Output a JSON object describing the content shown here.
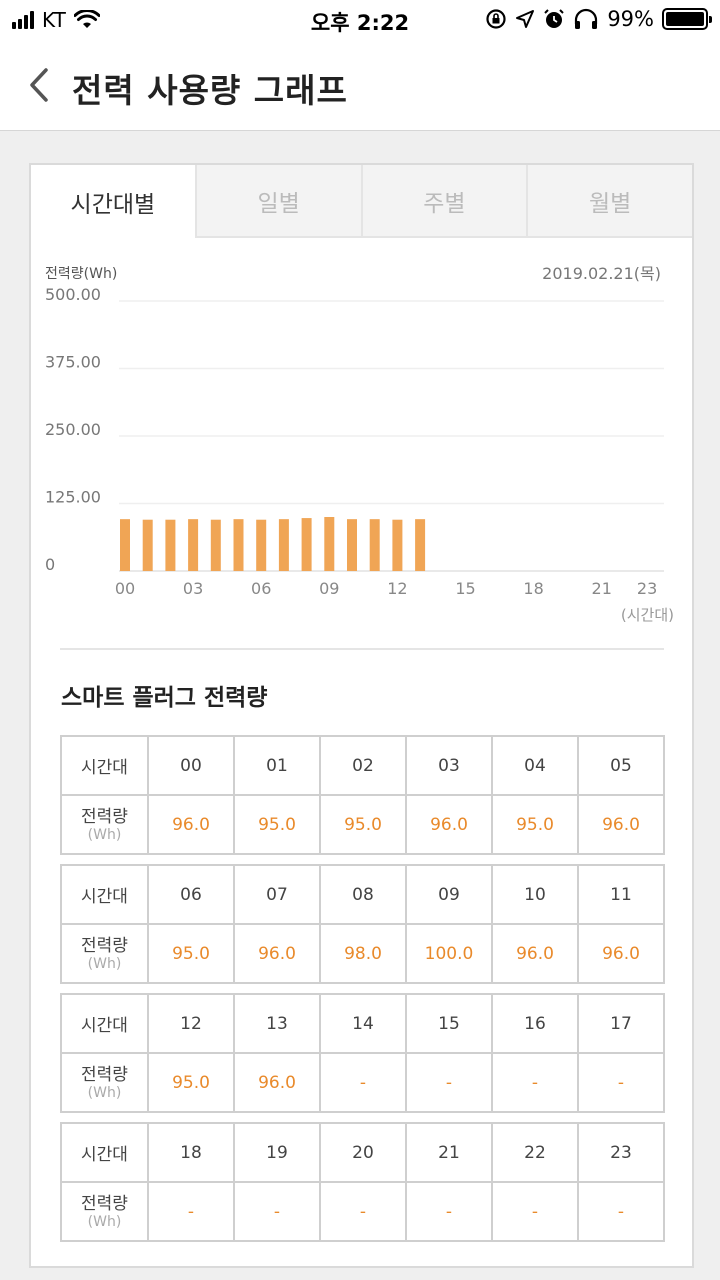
{
  "status": {
    "carrier": "KT",
    "time": "오후 2:22",
    "battery": "99%",
    "battery_level": 0.99
  },
  "header": {
    "title": "전력 사용량 그래프",
    "back_icon": "chevron-left-icon"
  },
  "tabs": [
    {
      "label": "시간대별",
      "active": true
    },
    {
      "label": "일별",
      "active": false
    },
    {
      "label": "주별",
      "active": false
    },
    {
      "label": "월별",
      "active": false
    }
  ],
  "chart_data": {
    "type": "bar",
    "ylabel": "전력량(Wh)",
    "xlabel": "(시간대)",
    "date": "2019.02.21(목)",
    "ylim": [
      0,
      500
    ],
    "yticks": [
      "500.00",
      "375.00",
      "250.00",
      "125.00",
      "0"
    ],
    "ytick_values": [
      500,
      375,
      250,
      125,
      0
    ],
    "xticks": [
      "00",
      "03",
      "06",
      "09",
      "12",
      "15",
      "18",
      "21",
      "23"
    ],
    "xtick_hours": [
      0,
      3,
      6,
      9,
      12,
      15,
      18,
      21,
      23
    ],
    "categories": [
      "00",
      "01",
      "02",
      "03",
      "04",
      "05",
      "06",
      "07",
      "08",
      "09",
      "10",
      "11",
      "12",
      "13",
      "14",
      "15",
      "16",
      "17",
      "18",
      "19",
      "20",
      "21",
      "22",
      "23"
    ],
    "values": [
      96.0,
      95.0,
      95.0,
      96.0,
      95.0,
      96.0,
      95.0,
      96.0,
      98.0,
      100.0,
      96.0,
      96.0,
      95.0,
      96.0,
      null,
      null,
      null,
      null,
      null,
      null,
      null,
      null,
      null,
      null
    ],
    "bar_color": "#f0a555",
    "grid": true
  },
  "usage": {
    "title": "스마트 플러그 전력량",
    "row_label_hour": "시간대",
    "row_label_power": "전력량",
    "row_label_unit": "(Wh)",
    "empty_value": "-",
    "tables": [
      {
        "hours": [
          "00",
          "01",
          "02",
          "03",
          "04",
          "05"
        ],
        "values": [
          "96.0",
          "95.0",
          "95.0",
          "96.0",
          "95.0",
          "96.0"
        ]
      },
      {
        "hours": [
          "06",
          "07",
          "08",
          "09",
          "10",
          "11"
        ],
        "values": [
          "95.0",
          "96.0",
          "98.0",
          "100.0",
          "96.0",
          "96.0"
        ]
      },
      {
        "hours": [
          "12",
          "13",
          "14",
          "15",
          "16",
          "17"
        ],
        "values": [
          "95.0",
          "96.0",
          "-",
          "-",
          "-",
          "-"
        ]
      },
      {
        "hours": [
          "18",
          "19",
          "20",
          "21",
          "22",
          "23"
        ],
        "values": [
          "-",
          "-",
          "-",
          "-",
          "-",
          "-"
        ]
      }
    ]
  },
  "colors": {
    "accent": "#e98a2b",
    "bar": "#f0a555"
  }
}
